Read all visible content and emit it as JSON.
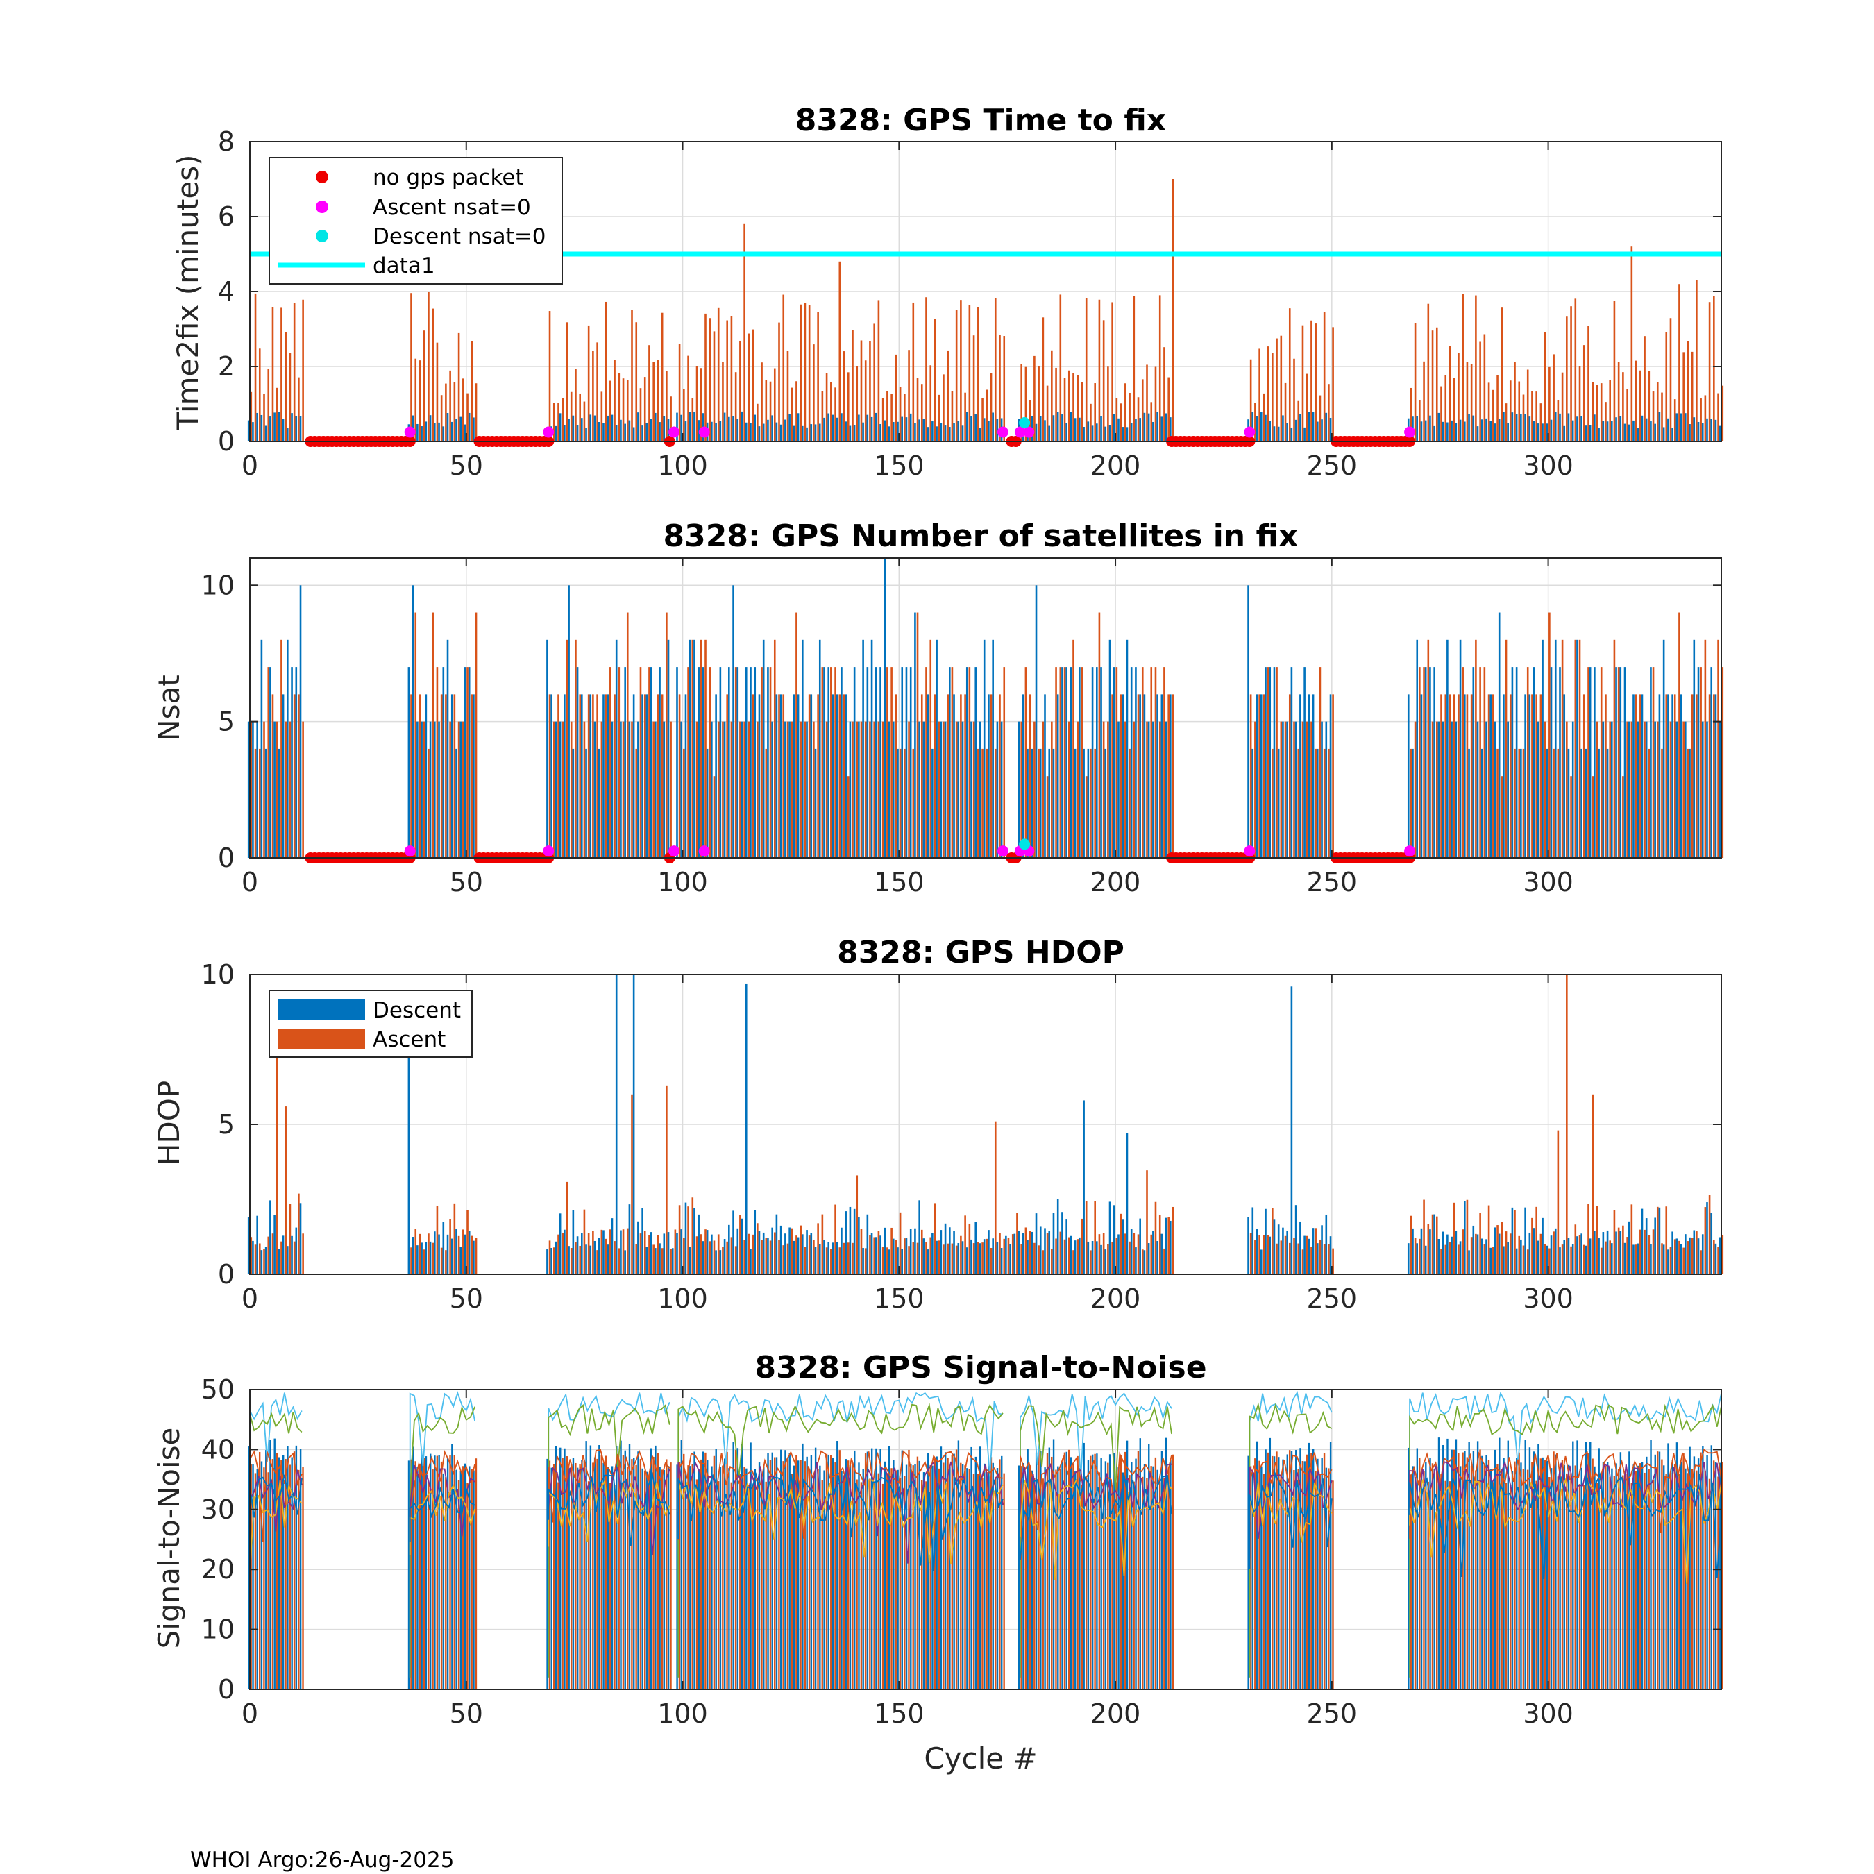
{
  "footer": "WHOI Argo:26-Aug-2025",
  "xlabel": "Cycle #",
  "colors": {
    "descent": "#0072BD",
    "ascent": "#D95319",
    "no_gps": "#EE0000",
    "ascent_nsat0": "#FF00FF",
    "descent_nsat0": "#00E5E5",
    "data1": "#00FFFF",
    "grid": "#dcdcdc",
    "snr_lines": [
      "#0072BD",
      "#D95319",
      "#EDB120",
      "#7E2F8E",
      "#77AC30",
      "#4DBEEE"
    ]
  },
  "chart_data": [
    {
      "id": "ttf",
      "type": "bar",
      "title": "8328: GPS Time to fix",
      "ylabel": "Time2fix (minutes)",
      "xlim": [
        0,
        340
      ],
      "ylim": [
        0,
        8
      ],
      "xticks": [
        0,
        50,
        100,
        150,
        200,
        250,
        300
      ],
      "yticks": [
        0,
        2,
        4,
        6,
        8
      ],
      "active_ranges": [
        [
          0,
          12
        ],
        [
          37,
          52
        ],
        [
          69,
          97
        ],
        [
          99,
          174
        ],
        [
          178,
          213
        ],
        [
          231,
          250
        ],
        [
          268,
          340
        ]
      ],
      "no_gps_ranges": [
        [
          14,
          37
        ],
        [
          53,
          69
        ],
        [
          213,
          231
        ],
        [
          251,
          268
        ]
      ],
      "no_gps_points": [
        97,
        176,
        177
      ],
      "ascent_nsat0_points": [
        37,
        69,
        98,
        105,
        174,
        178,
        180,
        231,
        268
      ],
      "ascent_nsat0_value": 0.25,
      "descent_nsat0_points": [
        179
      ],
      "descent_nsat0_value": 0.5,
      "descent_typical": 0.8,
      "ascent_range": [
        1.0,
        4.0
      ],
      "ascent_spikes": [
        [
          114,
          5.8
        ],
        [
          213,
          7.0
        ],
        [
          136,
          4.8
        ],
        [
          319,
          5.2
        ],
        [
          330,
          4.2
        ],
        [
          334,
          4.3
        ]
      ],
      "data1_value": 5,
      "legend": [
        "no gps packet",
        "Ascent nsat=0",
        "Descent nsat=0",
        "data1"
      ]
    },
    {
      "id": "nsat",
      "type": "bar",
      "title": "8328: GPS Number of satellites in fix",
      "ylabel": "Nsat",
      "xlim": [
        0,
        340
      ],
      "ylim": [
        0,
        11
      ],
      "xticks": [
        0,
        50,
        100,
        150,
        200,
        250,
        300
      ],
      "yticks": [
        0,
        5,
        10
      ],
      "descent_range": [
        4,
        10
      ],
      "ascent_range": [
        4,
        9
      ],
      "spikes": [
        [
          147,
          11
        ],
        [
          12,
          10
        ],
        [
          38,
          10
        ],
        [
          74,
          10
        ],
        [
          112,
          10
        ],
        [
          231,
          10
        ]
      ],
      "ascent_nsat0_value": 0.25,
      "descent_nsat0_value": 0.5
    },
    {
      "id": "hdop",
      "type": "bar",
      "title": "8328: GPS HDOP",
      "ylabel": "HDOP",
      "xlim": [
        0,
        340
      ],
      "ylim": [
        0,
        10
      ],
      "xticks": [
        0,
        50,
        100,
        150,
        200,
        250,
        300
      ],
      "yticks": [
        0,
        5,
        10
      ],
      "typical_range": [
        0.8,
        2.5
      ],
      "spikes": [
        [
          6,
          7.5
        ],
        [
          8,
          5.6
        ],
        [
          37,
          7.6
        ],
        [
          85,
          10
        ],
        [
          89,
          10
        ],
        [
          88,
          6.0
        ],
        [
          115,
          9.7
        ],
        [
          96,
          6.3
        ],
        [
          193,
          5.8
        ],
        [
          241,
          9.6
        ],
        [
          304,
          10
        ],
        [
          302,
          4.8
        ],
        [
          310,
          6.0
        ],
        [
          140,
          3.3
        ],
        [
          172,
          3.9
        ],
        [
          203,
          4.7
        ]
      ],
      "legend": [
        "Descent",
        "Ascent"
      ]
    },
    {
      "id": "snr",
      "type": "line",
      "title": "8328: GPS Signal-to-Noise",
      "ylabel": "Signal-to-Noise",
      "xlabel": "Cycle #",
      "xlim": [
        0,
        340
      ],
      "ylim": [
        0,
        50
      ],
      "xticks": [
        0,
        50,
        100,
        150,
        200,
        250,
        300
      ],
      "yticks": [
        0,
        10,
        20,
        30,
        40,
        50
      ],
      "bar_range": [
        36,
        42
      ],
      "series_levels": [
        {
          "name": "sat1",
          "mean": 47,
          "spread": 2.5
        },
        {
          "name": "sat2",
          "mean": 45,
          "spread": 2.5
        },
        {
          "name": "sat3",
          "mean": 37,
          "spread": 3
        },
        {
          "name": "sat4",
          "mean": 34,
          "spread": 4
        },
        {
          "name": "sat5",
          "mean": 31,
          "spread": 4
        },
        {
          "name": "sat6",
          "mean": 32,
          "spread": 4
        }
      ]
    }
  ]
}
